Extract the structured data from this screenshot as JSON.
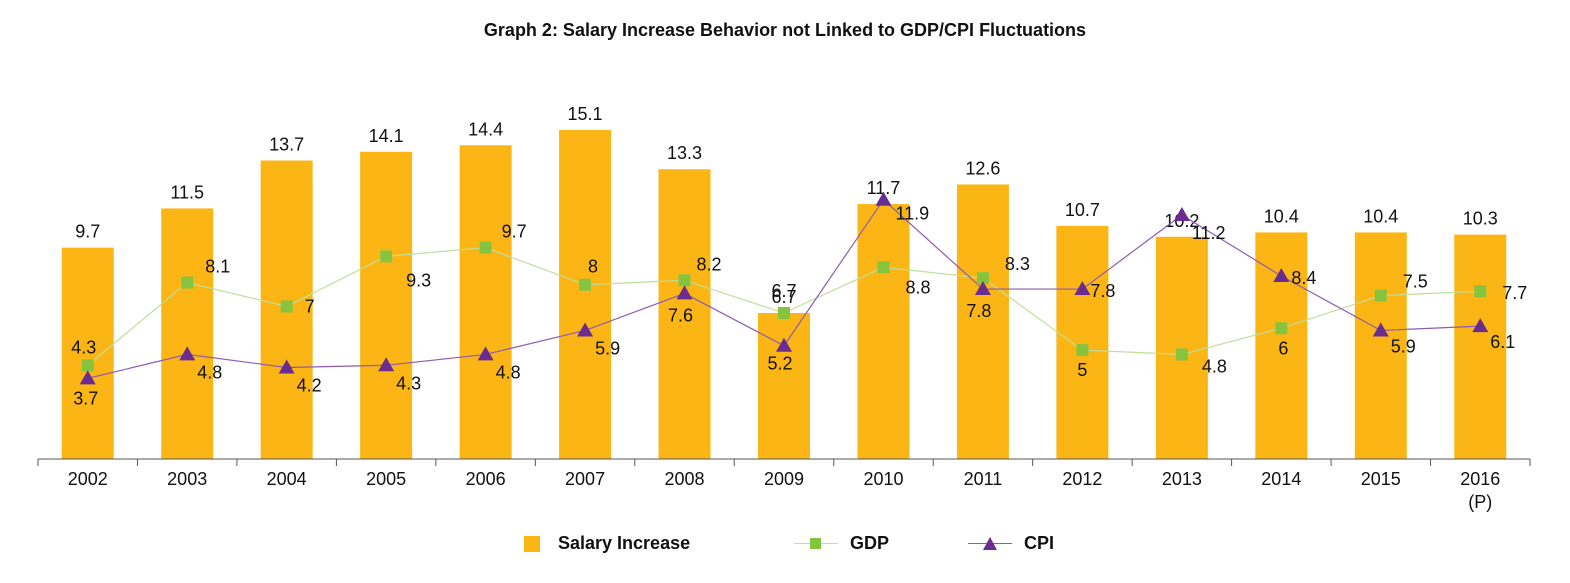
{
  "chart_data": {
    "type": "bar",
    "title": "Graph 2: Salary Increase Behavior not Linked to GDP/CPI Fluctuations",
    "categories": [
      "2002",
      "2003",
      "2004",
      "2005",
      "2006",
      "2007",
      "2008",
      "2009",
      "2010",
      "2011",
      "2012",
      "2013",
      "2014",
      "2015",
      "2016"
    ],
    "category_sublabels": [
      "",
      "",
      "",
      "",
      "",
      "",
      "",
      "",
      "",
      "",
      "",
      "",
      "",
      "",
      "(P)"
    ],
    "series": [
      {
        "name": "Salary Increase",
        "kind": "bar",
        "values": [
          9.7,
          11.5,
          13.7,
          14.1,
          14.4,
          15.1,
          13.3,
          6.7,
          11.7,
          12.6,
          10.7,
          10.2,
          10.4,
          10.4,
          10.3
        ]
      },
      {
        "name": "GDP",
        "kind": "line",
        "marker": "square",
        "values": [
          4.3,
          8.1,
          7,
          9.3,
          9.7,
          8,
          8.2,
          6.7,
          8.8,
          8.3,
          5,
          4.8,
          6,
          7.5,
          7.7
        ]
      },
      {
        "name": "CPI",
        "kind": "line",
        "marker": "triangle",
        "values": [
          3.7,
          4.8,
          4.2,
          4.3,
          4.8,
          5.9,
          7.6,
          5.2,
          11.9,
          7.8,
          7.8,
          11.2,
          8.4,
          5.9,
          6.1
        ]
      }
    ],
    "ylim": [
      0,
      15.1
    ],
    "grid": false,
    "legend_position": "bottom",
    "colors": {
      "Salary Increase": "#FBB616",
      "GDP": "#86C440",
      "GDP_line": "#BDE09A",
      "CPI": "#6B2C91",
      "CPI_line": "#8E5BB0"
    }
  }
}
